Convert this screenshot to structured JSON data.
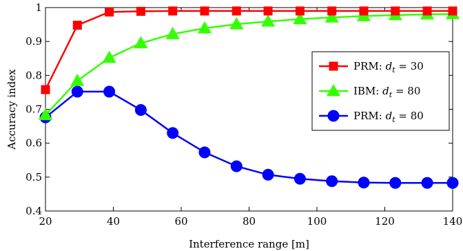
{
  "chart_data": {
    "type": "line",
    "xlabel": "Interference range [m]",
    "ylabel": "Accuracy index",
    "xlim": [
      20,
      140
    ],
    "ylim": [
      0.4,
      1.0
    ],
    "x_ticks": [
      20,
      40,
      60,
      80,
      100,
      120,
      140
    ],
    "y_ticks": [
      0.4,
      0.5,
      0.6,
      0.7,
      0.8,
      0.9,
      1.0
    ],
    "x_tick_labels": [
      "20",
      "40",
      "60",
      "80",
      "100",
      "120",
      "140"
    ],
    "y_tick_labels": [
      "0.4",
      "0.5",
      "0.6",
      "0.7",
      "0.8",
      "0.9",
      "1"
    ],
    "grid": false,
    "legend_position": "right",
    "x": [
      20,
      29.4,
      38.8,
      48.1,
      57.5,
      66.9,
      76.3,
      85.6,
      95,
      104.4,
      113.8,
      123.1,
      132.5,
      140
    ],
    "series": [
      {
        "name": "PRM: d_t = 30",
        "legend_prefix": "PRM: ",
        "legend_var": "d",
        "legend_sub": "t",
        "legend_rhs": " = 30",
        "color": "#ff0000",
        "marker": "square",
        "values": [
          0.758,
          0.948,
          0.987,
          0.989,
          0.99,
          0.99,
          0.99,
          0.99,
          0.99,
          0.99,
          0.99,
          0.99,
          0.99,
          0.99
        ]
      },
      {
        "name": "IBM: d_t = 80",
        "legend_prefix": "IBM:  ",
        "legend_var": "d",
        "legend_sub": "t",
        "legend_rhs": " = 80",
        "color": "#33ff00",
        "marker": "triangle",
        "values": [
          0.683,
          0.784,
          0.852,
          0.895,
          0.922,
          0.939,
          0.951,
          0.959,
          0.966,
          0.971,
          0.975,
          0.978,
          0.98,
          0.981
        ]
      },
      {
        "name": "PRM: d_t = 80",
        "legend_prefix": "PRM: ",
        "legend_var": "d",
        "legend_sub": "t",
        "legend_rhs": " = 80",
        "color": "#0000ff",
        "marker": "circle",
        "values": [
          0.676,
          0.752,
          0.752,
          0.698,
          0.63,
          0.573,
          0.532,
          0.507,
          0.495,
          0.488,
          0.484,
          0.483,
          0.483,
          0.483
        ]
      }
    ]
  }
}
